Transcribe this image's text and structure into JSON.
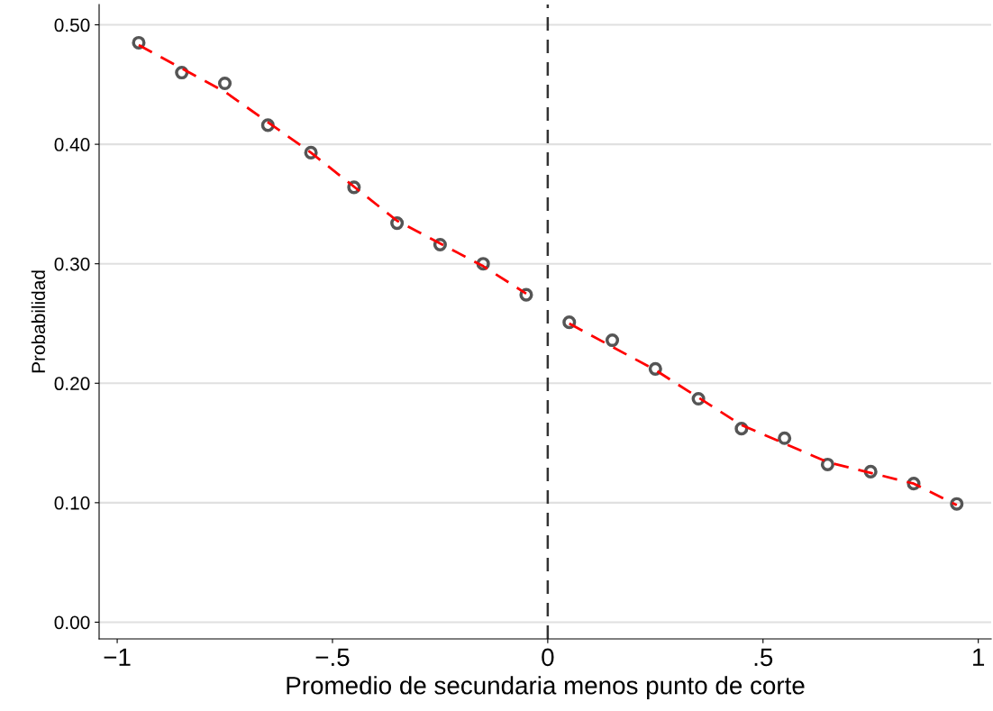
{
  "chart_data": {
    "type": "scatter",
    "xlabel": "Promedio de secundaria menos punto de corte",
    "ylabel": "Probabilidad",
    "x": [
      -0.95,
      -0.85,
      -0.75,
      -0.65,
      -0.55,
      -0.45,
      -0.35,
      -0.25,
      -0.15,
      -0.05,
      0.05,
      0.15,
      0.25,
      0.35,
      0.45,
      0.55,
      0.65,
      0.75,
      0.85,
      0.95
    ],
    "series": [
      {
        "color": "#555555",
        "marker": "circle",
        "values": [
          0.485,
          0.46,
          0.451,
          0.416,
          0.393,
          0.364,
          0.334,
          0.316,
          0.3,
          0.274,
          0.251,
          0.236,
          0.212,
          0.187,
          0.162,
          0.154,
          0.132,
          0.126,
          0.116,
          0.099
        ]
      },
      {
        "type": "line",
        "color": "#ff0000",
        "line_style": "dashed",
        "x": [
          -0.95,
          -0.75,
          -0.55,
          -0.35,
          -0.15,
          -0.05
        ],
        "values": [
          0.483,
          0.444,
          0.393,
          0.336,
          0.298,
          0.275
        ]
      },
      {
        "type": "line",
        "color": "#ff0000",
        "line_style": "dashed",
        "x": [
          0.05,
          0.25,
          0.45,
          0.65,
          0.85,
          0.95
        ],
        "values": [
          0.25,
          0.211,
          0.165,
          0.134,
          0.116,
          0.098
        ]
      }
    ],
    "xlim": [
      -1.042,
      1.03
    ],
    "xticks": [
      {
        "value": -1,
        "label": "−1"
      },
      {
        "value": -0.5,
        "label": "−.5"
      },
      0,
      {
        "value": 0.5,
        "label": ".5"
      },
      1
    ],
    "ylim": [
      -0.014,
      0.517
    ],
    "yticks": [
      {
        "value": 0,
        "label": "0.00"
      },
      {
        "value": 0.1,
        "label": "0.10"
      },
      {
        "value": 0.2,
        "label": "0.20"
      },
      {
        "value": 0.3,
        "label": "0.30"
      },
      {
        "value": 0.4,
        "label": "0.40"
      },
      {
        "value": 0.5,
        "label": "0.50"
      }
    ],
    "grid": "y",
    "ref_lines": [
      {
        "axis": "x",
        "value": 0,
        "color": "#333333",
        "line_style": "dashed"
      }
    ]
  }
}
